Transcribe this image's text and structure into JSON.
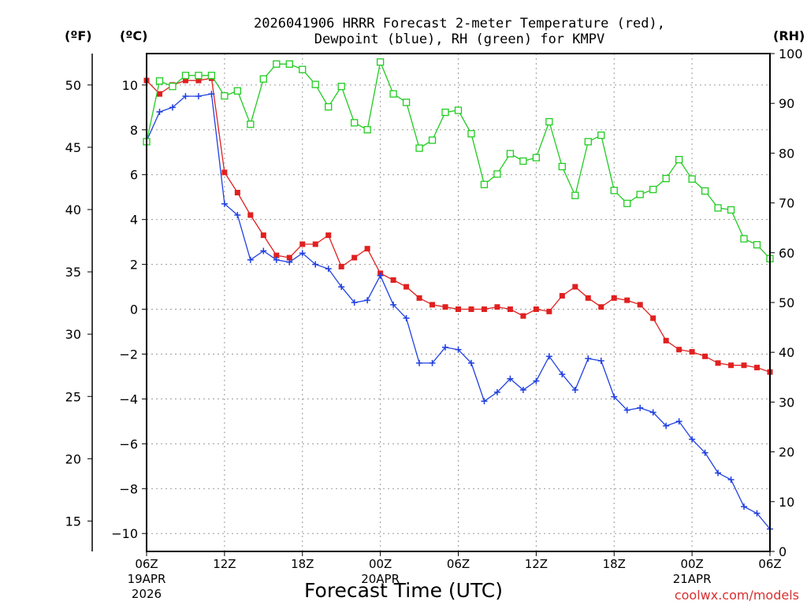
{
  "chart_data": {
    "type": "line",
    "title_line1": "2026041906 HRRR Forecast 2-meter Temperature (red),",
    "title_line2": "Dewpoint (blue), RH (green) for KMPV",
    "xlabel": "Forecast Time (UTC)",
    "credit": "coolwx.com/models",
    "left_outer_unit": "(ºF)",
    "left_inner_unit": "(ºC)",
    "right_unit": "(RH)",
    "forecast_hours": [
      0,
      1,
      2,
      3,
      4,
      5,
      6,
      7,
      8,
      9,
      10,
      11,
      12,
      13,
      14,
      15,
      16,
      17,
      18,
      19,
      20,
      21,
      22,
      23,
      24,
      25,
      26,
      27,
      28,
      29,
      30,
      31,
      32,
      33,
      34,
      35,
      36,
      37,
      38,
      39,
      40,
      41,
      42,
      43,
      44,
      45,
      46,
      47,
      48
    ],
    "x_ticks": [
      {
        "hour": 0,
        "label": "06Z",
        "sub1": "19APR",
        "sub2": "2026"
      },
      {
        "hour": 6,
        "label": "12Z",
        "sub1": "",
        "sub2": ""
      },
      {
        "hour": 12,
        "label": "18Z",
        "sub1": "",
        "sub2": ""
      },
      {
        "hour": 18,
        "label": "00Z",
        "sub1": "20APR",
        "sub2": ""
      },
      {
        "hour": 24,
        "label": "06Z",
        "sub1": "",
        "sub2": ""
      },
      {
        "hour": 30,
        "label": "12Z",
        "sub1": "",
        "sub2": ""
      },
      {
        "hour": 36,
        "label": "18Z",
        "sub1": "",
        "sub2": ""
      },
      {
        "hour": 42,
        "label": "00Z",
        "sub1": "21APR",
        "sub2": ""
      },
      {
        "hour": 48,
        "label": "06Z",
        "sub1": "",
        "sub2": ""
      }
    ],
    "celsius_axis": {
      "range": [
        -10.8,
        11.4
      ],
      "ticks": [
        10,
        8,
        6,
        4,
        2,
        0,
        -2,
        -4,
        -6,
        -8,
        -10
      ],
      "labels": [
        "10",
        "8",
        "6",
        "4",
        "2",
        "0",
        "−2",
        "−4",
        "−6",
        "−8",
        "−10"
      ]
    },
    "fahrenheit_axis": {
      "ticks": [
        50,
        45,
        40,
        35,
        30,
        25,
        20,
        15
      ],
      "labels": [
        "50",
        "45",
        "40",
        "35",
        "30",
        "25",
        "20",
        "15"
      ]
    },
    "rh_axis": {
      "range": [
        0,
        100
      ],
      "ticks": [
        100,
        90,
        80,
        70,
        60,
        50,
        40,
        30,
        20,
        10,
        0
      ],
      "labels": [
        "100",
        "90",
        "80",
        "70",
        "60",
        "50",
        "40",
        "30",
        "20",
        "10",
        "0"
      ]
    },
    "series": [
      {
        "name": "Temperature (°C)",
        "color": "#e02020",
        "marker": "filled-square",
        "axis": "celsius",
        "values": [
          10.2,
          9.6,
          10.0,
          10.2,
          10.2,
          10.3,
          6.1,
          5.2,
          4.2,
          3.3,
          2.4,
          2.3,
          2.9,
          2.9,
          3.3,
          1.9,
          2.3,
          2.7,
          1.6,
          1.3,
          1.0,
          0.5,
          0.2,
          0.1,
          0.0,
          0.0,
          0.0,
          0.1,
          0.0,
          -0.3,
          0.0,
          -0.1,
          0.6,
          1.0,
          0.5,
          0.1,
          0.5,
          0.4,
          0.2,
          -0.4,
          -1.4,
          -1.8,
          -1.9,
          -2.1,
          -2.4,
          -2.5,
          -2.5,
          -2.6,
          -2.8
        ]
      },
      {
        "name": "Dewpoint (°C)",
        "color": "#2040e0",
        "marker": "plus",
        "axis": "celsius",
        "values": [
          7.5,
          8.8,
          9.0,
          9.5,
          9.5,
          9.6,
          4.7,
          4.2,
          2.2,
          2.6,
          2.2,
          2.1,
          2.5,
          2.0,
          1.8,
          1.0,
          0.3,
          0.4,
          1.5,
          0.2,
          -0.4,
          -2.4,
          -2.4,
          -1.7,
          -1.8,
          -2.4,
          -4.1,
          -3.7,
          -3.1,
          -3.6,
          -3.2,
          -2.1,
          -2.9,
          -3.6,
          -2.2,
          -2.3,
          -3.9,
          -4.5,
          -4.4,
          -4.6,
          -5.2,
          -5.0,
          -5.8,
          -6.4,
          -7.3,
          -7.6,
          -8.8,
          -9.1,
          -9.8
        ]
      },
      {
        "name": "RH (%)",
        "color": "#20cc20",
        "marker": "open-square",
        "axis": "rh",
        "values": [
          82.3,
          94.5,
          93.4,
          95.6,
          95.6,
          95.6,
          91.5,
          92.5,
          85.8,
          94.9,
          97.9,
          97.9,
          96.8,
          93.8,
          89.3,
          93.4,
          86.1,
          84.7,
          98.3,
          91.9,
          90.2,
          81.0,
          82.6,
          88.2,
          88.6,
          83.9,
          73.7,
          75.8,
          79.9,
          78.4,
          79.1,
          86.3,
          77.3,
          71.5,
          82.3,
          83.6,
          72.5,
          69.9,
          71.7,
          72.7,
          74.9,
          78.7,
          74.8,
          72.4,
          69.0,
          68.6,
          62.8,
          61.6,
          58.8
        ]
      }
    ]
  }
}
